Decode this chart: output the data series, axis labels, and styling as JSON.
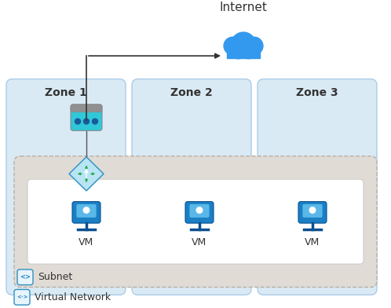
{
  "bg_color": "#ffffff",
  "title": "Internet",
  "title_fontsize": 11,
  "zone_bg_color": "#daeaf5",
  "zone_border_color": "#aacce8",
  "zone_labels": [
    "Zone 1",
    "Zone 2",
    "Zone 3"
  ],
  "subnet_bg_color": "#e0dbd5",
  "subnet_border_color": "#b8b0a5",
  "vm_area_color": "#ffffff",
  "vm_area_border": "#cccccc",
  "cloud_color": "#3399ee",
  "arrow_color": "#333333",
  "font_color": "#333333",
  "zone_label_fontsize": 10,
  "vm_fontsize": 9,
  "nat_icon_main": "#2ec8d8",
  "nat_icon_top": "#909090",
  "router_fill": "#b8e4f4",
  "router_border": "#3090c0",
  "router_arrow": "#22aa44",
  "vm_body": "#1a7fc4",
  "vm_screen": "#5ab8e8",
  "vm_stand": "#0a5090",
  "subnet_icon_color": "#2080c0",
  "vnet_icon_color": "#2080c0"
}
